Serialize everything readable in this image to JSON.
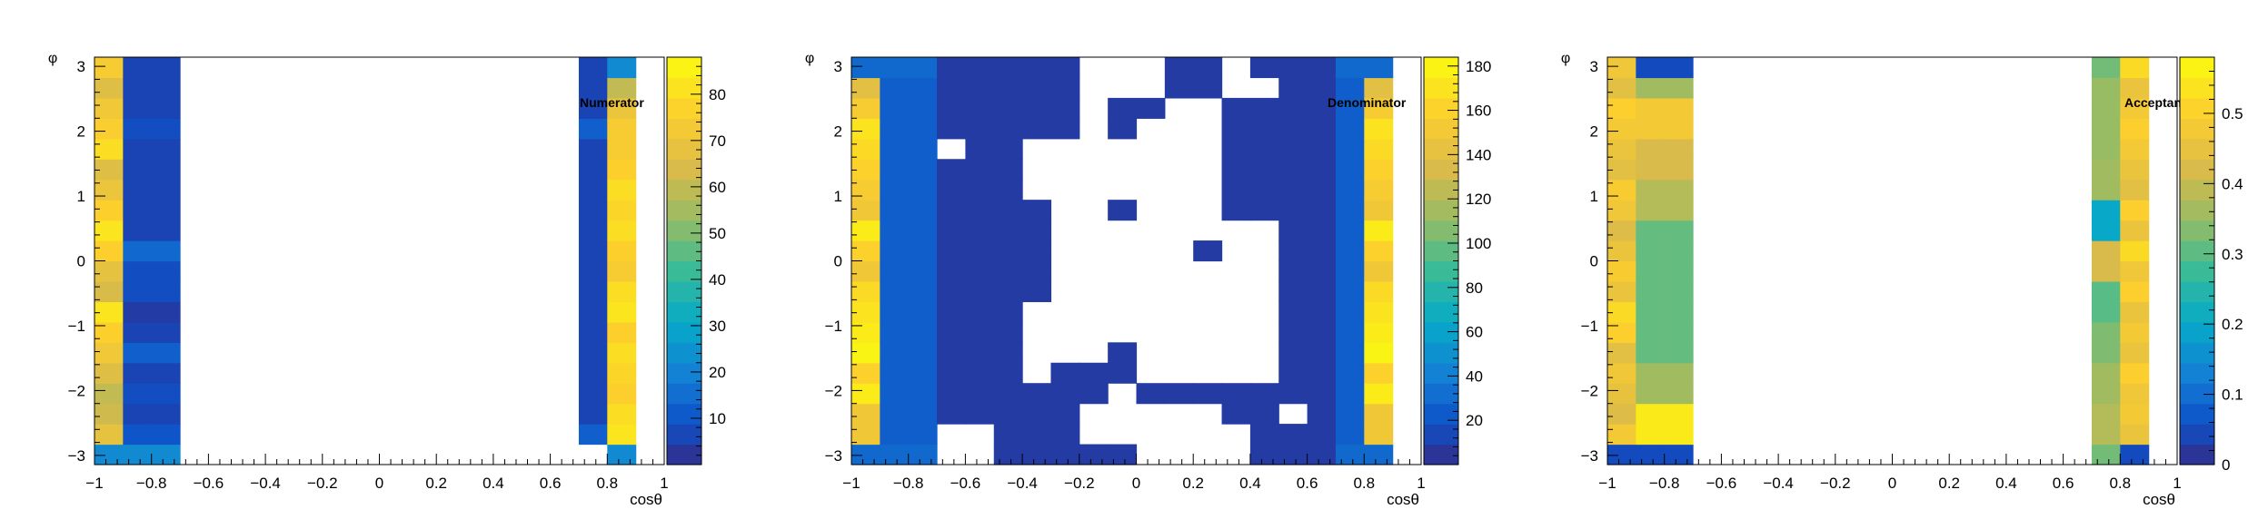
{
  "chart_data": [
    {
      "type": "heatmap",
      "title": "Numerator",
      "xlabel": "cosθ",
      "ylabel": "φ",
      "xlim": [
        -1,
        1
      ],
      "ylim": [
        -3.14159,
        3.14159
      ],
      "x_bins": 20,
      "y_bins": 20,
      "x_ticks": [
        "−1",
        "−0.8",
        "−0.6",
        "−0.4",
        "−0.2",
        "0",
        "0.2",
        "0.4",
        "0.6",
        "0.8",
        "1"
      ],
      "y_ticks": [
        "−3",
        "−2",
        "−1",
        "0",
        "1",
        "2",
        "3"
      ],
      "colorbar": {
        "min": 0,
        "max": 88,
        "ticks": [
          "10",
          "20",
          "30",
          "40",
          "50",
          "60",
          "70",
          "80"
        ],
        "tick_values": [
          10,
          20,
          30,
          40,
          50,
          60,
          70,
          80
        ]
      },
      "columns": [
        {
          "x_bin": 0,
          "values": [
            22,
            68,
            62,
            60,
            66,
            72,
            76,
            82,
            64,
            68,
            76,
            82,
            76,
            70,
            66,
            80,
            75,
            72,
            66,
            74
          ]
        },
        {
          "x_bin": 1,
          "values": [
            22,
            10,
            6,
            8,
            6,
            12,
            6,
            4,
            8,
            8,
            14,
            6,
            6,
            6,
            6,
            6,
            8,
            6,
            6,
            6
          ]
        },
        {
          "x_bin": 2,
          "values": [
            22,
            10,
            6,
            8,
            6,
            12,
            6,
            4,
            8,
            8,
            14,
            6,
            6,
            6,
            6,
            6,
            8,
            6,
            6,
            6
          ]
        },
        {
          "x_bin": 17,
          "values": [
            0,
            12,
            6,
            6,
            6,
            6,
            6,
            6,
            6,
            6,
            6,
            6,
            6,
            6,
            6,
            6,
            12,
            6,
            6,
            6
          ]
        },
        {
          "x_bin": 18,
          "values": [
            22,
            82,
            80,
            76,
            78,
            80,
            76,
            82,
            80,
            74,
            76,
            80,
            78,
            80,
            76,
            74,
            74,
            70,
            60,
            22
          ]
        }
      ]
    },
    {
      "type": "heatmap",
      "title": "Denominator",
      "xlabel": "cosθ",
      "ylabel": "φ",
      "xlim": [
        -1,
        1
      ],
      "ylim": [
        -3.14159,
        3.14159
      ],
      "x_bins": 20,
      "y_bins": 20,
      "x_ticks": [
        "−1",
        "−0.8",
        "−0.6",
        "−0.4",
        "−0.2",
        "0",
        "0.2",
        "0.4",
        "0.6",
        "0.8",
        "1"
      ],
      "y_ticks": [
        "−3",
        "−2",
        "−1",
        "0",
        "1",
        "2",
        "3"
      ],
      "colorbar": {
        "min": 0,
        "max": 184,
        "ticks": [
          "20",
          "40",
          "60",
          "80",
          "100",
          "120",
          "140",
          "160",
          "180"
        ],
        "tick_values": [
          20,
          40,
          60,
          80,
          100,
          120,
          140,
          160,
          180
        ]
      },
      "columns": [
        {
          "x_bin": 0,
          "values": [
            30,
            150,
            150,
            175,
            160,
            180,
            175,
            170,
            165,
            150,
            160,
            175,
            150,
            155,
            160,
            165,
            170,
            155,
            140,
            30
          ]
        },
        {
          "x_bin": 1,
          "values": [
            30,
            25,
            25,
            25,
            25,
            25,
            25,
            25,
            25,
            25,
            25,
            25,
            25,
            25,
            25,
            25,
            25,
            25,
            25,
            30
          ]
        },
        {
          "x_bin": 2,
          "values": [
            30,
            25,
            25,
            25,
            25,
            25,
            25,
            25,
            25,
            25,
            25,
            25,
            25,
            25,
            25,
            25,
            25,
            25,
            25,
            30
          ]
        },
        {
          "x_bin": 3,
          "values": [
            0,
            0,
            8,
            8,
            8,
            8,
            8,
            8,
            8,
            8,
            8,
            8,
            8,
            8,
            8,
            0,
            8,
            8,
            8,
            8
          ]
        },
        {
          "x_bin": 4,
          "values": [
            0,
            0,
            8,
            8,
            8,
            8,
            8,
            8,
            8,
            8,
            8,
            8,
            8,
            8,
            8,
            8,
            8,
            8,
            8,
            8
          ]
        },
        {
          "x_bin": 5,
          "values": [
            8,
            8,
            8,
            8,
            8,
            8,
            8,
            8,
            8,
            8,
            8,
            8,
            8,
            8,
            8,
            8,
            8,
            8,
            8,
            8
          ]
        },
        {
          "x_bin": 6,
          "values": [
            8,
            8,
            8,
            8,
            0,
            0,
            0,
            0,
            8,
            8,
            8,
            8,
            8,
            0,
            0,
            0,
            8,
            8,
            8,
            8
          ]
        },
        {
          "x_bin": 7,
          "values": [
            8,
            8,
            8,
            8,
            8,
            0,
            0,
            0,
            0,
            0,
            0,
            0,
            0,
            0,
            0,
            0,
            8,
            8,
            8,
            8
          ]
        },
        {
          "x_bin": 8,
          "values": [
            8,
            0,
            0,
            8,
            8,
            0,
            0,
            0,
            0,
            0,
            0,
            0,
            0,
            0,
            0,
            0,
            0,
            0,
            0,
            0
          ]
        },
        {
          "x_bin": 9,
          "values": [
            8,
            0,
            0,
            0,
            8,
            8,
            0,
            0,
            0,
            0,
            0,
            0,
            8,
            0,
            0,
            0,
            8,
            8,
            0,
            0
          ]
        },
        {
          "x_bin": 10,
          "values": [
            0,
            0,
            0,
            8,
            0,
            0,
            0,
            0,
            0,
            0,
            0,
            0,
            0,
            0,
            0,
            0,
            0,
            8,
            0,
            0
          ]
        },
        {
          "x_bin": 11,
          "values": [
            0,
            0,
            0,
            8,
            0,
            0,
            0,
            0,
            0,
            0,
            0,
            0,
            0,
            0,
            0,
            0,
            0,
            0,
            8,
            8
          ]
        },
        {
          "x_bin": 12,
          "values": [
            0,
            0,
            0,
            8,
            0,
            0,
            0,
            0,
            0,
            0,
            8,
            0,
            0,
            0,
            0,
            0,
            0,
            0,
            8,
            8
          ]
        },
        {
          "x_bin": 13,
          "values": [
            0,
            0,
            8,
            8,
            0,
            0,
            0,
            0,
            0,
            0,
            0,
            0,
            8,
            8,
            8,
            8,
            8,
            8,
            0,
            0
          ]
        },
        {
          "x_bin": 14,
          "values": [
            8,
            8,
            8,
            8,
            0,
            0,
            0,
            0,
            0,
            0,
            0,
            0,
            8,
            8,
            8,
            8,
            8,
            8,
            0,
            8
          ]
        },
        {
          "x_bin": 15,
          "values": [
            8,
            8,
            0,
            8,
            8,
            8,
            8,
            8,
            8,
            8,
            8,
            8,
            8,
            8,
            8,
            8,
            8,
            8,
            8,
            8
          ]
        },
        {
          "x_bin": 16,
          "values": [
            8,
            8,
            8,
            8,
            8,
            8,
            8,
            8,
            8,
            8,
            8,
            8,
            8,
            8,
            8,
            8,
            8,
            8,
            8,
            8
          ]
        },
        {
          "x_bin": 17,
          "values": [
            30,
            25,
            25,
            25,
            25,
            25,
            25,
            25,
            25,
            25,
            25,
            25,
            25,
            25,
            25,
            25,
            25,
            25,
            25,
            30
          ]
        },
        {
          "x_bin": 18,
          "values": [
            30,
            150,
            150,
            175,
            160,
            180,
            175,
            170,
            165,
            150,
            160,
            175,
            150,
            155,
            160,
            165,
            170,
            155,
            140,
            30
          ]
        }
      ]
    },
    {
      "type": "heatmap",
      "title": "Acceptance",
      "xlabel": "cosθ",
      "ylabel": "φ",
      "xlim": [
        -1,
        1
      ],
      "ylim": [
        -3.14159,
        3.14159
      ],
      "x_bins": 20,
      "y_bins": 20,
      "x_ticks": [
        "−1",
        "−0.8",
        "−0.6",
        "−0.4",
        "−0.2",
        "0",
        "0.2",
        "0.4",
        "0.6",
        "0.8",
        "1"
      ],
      "y_ticks": [
        "−3",
        "−2",
        "−1",
        "0",
        "1",
        "2",
        "3"
      ],
      "colorbar": {
        "min": 0,
        "max": 0.58,
        "ticks": [
          "0",
          "0.1",
          "0.2",
          "0.3",
          "0.4",
          "0.5"
        ],
        "tick_values": [
          0,
          0.1,
          0.2,
          0.3,
          0.4,
          0.5
        ]
      },
      "columns": [
        {
          "x_bin": 0,
          "values": [
            0.05,
            0.48,
            0.43,
            0.45,
            0.47,
            0.44,
            0.5,
            0.52,
            0.46,
            0.49,
            0.46,
            0.43,
            0.47,
            0.49,
            0.44,
            0.46,
            0.48,
            0.5,
            0.44,
            0.47
          ]
        },
        {
          "x_bin": 1,
          "values": [
            0.05,
            0.55,
            0.55,
            0.36,
            0.36,
            0.31,
            0.31,
            0.31,
            0.31,
            0.31,
            0.31,
            0.31,
            0.38,
            0.38,
            0.42,
            0.42,
            0.48,
            0.48,
            0.36,
            0.05
          ]
        },
        {
          "x_bin": 2,
          "values": [
            0.05,
            0.55,
            0.55,
            0.36,
            0.36,
            0.31,
            0.31,
            0.31,
            0.31,
            0.31,
            0.31,
            0.31,
            0.38,
            0.38,
            0.42,
            0.42,
            0.48,
            0.48,
            0.36,
            0.05
          ]
        },
        {
          "x_bin": 17,
          "values": [
            0.32,
            0.38,
            0.38,
            0.36,
            0.36,
            0.33,
            0.33,
            0.3,
            0.3,
            0.42,
            0.42,
            0.2,
            0.2,
            0.36,
            0.36,
            0.35,
            0.35,
            0.35,
            0.35,
            0.32
          ]
        },
        {
          "x_bin": 18,
          "values": [
            0.05,
            0.46,
            0.48,
            0.47,
            0.5,
            0.46,
            0.48,
            0.46,
            0.5,
            0.47,
            0.52,
            0.46,
            0.5,
            0.44,
            0.46,
            0.48,
            0.5,
            0.48,
            0.46,
            0.52
          ]
        }
      ]
    }
  ]
}
